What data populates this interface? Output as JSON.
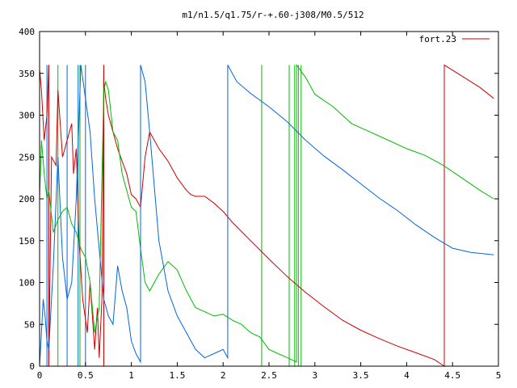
{
  "chart_data": {
    "type": "line",
    "title": "m1/n1.5/q1.75/r-+.60-j308/M0.5/512",
    "xlabel": "",
    "ylabel": "",
    "xlim": [
      0,
      5
    ],
    "ylim": [
      0,
      400
    ],
    "xticks": [
      0,
      0.5,
      1,
      1.5,
      2,
      2.5,
      3,
      3.5,
      4,
      4.5,
      5
    ],
    "xtick_labels": [
      "0",
      "0.5",
      "1",
      "1.5",
      "2",
      "2.5",
      "3",
      "3.5",
      "4",
      "4.5",
      "5"
    ],
    "yticks": [
      0,
      50,
      100,
      150,
      200,
      250,
      300,
      350,
      400
    ],
    "ytick_labels": [
      "0",
      "50",
      "100",
      "150",
      "200",
      "250",
      "300",
      "350",
      "400"
    ],
    "grid": false,
    "legend_position": "top-right",
    "legend": [
      {
        "label": "fort.23",
        "color": "#cc0000"
      }
    ],
    "series": [
      {
        "color": "#cc0000",
        "x": [
          0,
          0.02,
          0.05,
          0.08,
          0.1,
          0.1,
          0.13,
          0.18,
          0.2,
          0.25,
          0.3,
          0.35,
          0.37,
          0.4,
          0.43,
          0.47,
          0.52,
          0.55,
          0.6,
          0.63,
          0.65,
          0.68,
          0.7,
          0.7,
          0.72,
          0.75,
          0.8,
          0.85,
          0.9,
          0.95,
          1.0,
          1.05,
          1.1,
          1.15,
          1.2,
          1.25,
          1.3,
          1.4,
          1.5,
          1.6,
          1.65,
          1.7,
          1.8,
          1.9,
          2.0,
          2.1,
          2.3,
          2.5,
          2.7,
          2.9,
          3.1,
          3.3,
          3.5,
          3.7,
          3.9,
          4.1,
          4.3,
          4.41,
          4.41,
          4.6,
          4.8,
          4.95
        ],
        "y": [
          355,
          330,
          270,
          300,
          360,
          0,
          250,
          240,
          330,
          250,
          270,
          290,
          230,
          260,
          150,
          80,
          40,
          100,
          20,
          70,
          10,
          80,
          360,
          340,
          320,
          300,
          280,
          260,
          245,
          230,
          205,
          200,
          190,
          250,
          280,
          270,
          260,
          245,
          225,
          210,
          205,
          203,
          203,
          195,
          185,
          172,
          150,
          128,
          107,
          88,
          71,
          55,
          43,
          33,
          24,
          16,
          8,
          0,
          360,
          347,
          333,
          320
        ]
      },
      {
        "color": "#00bb00",
        "x": [
          0,
          0.02,
          0.05,
          0.08,
          0.1,
          0.15,
          0.2,
          0.25,
          0.3,
          0.35,
          0.4,
          0.45,
          0.5,
          0.55,
          0.6,
          0.65,
          0.7,
          0.72,
          0.75,
          0.8,
          0.85,
          0.9,
          0.95,
          1.0,
          1.05,
          1.1,
          1.15,
          1.2,
          1.3,
          1.4,
          1.45,
          1.5,
          1.6,
          1.7,
          1.8,
          1.9,
          2.0,
          2.1,
          2.2,
          2.3,
          2.4,
          2.5,
          2.6,
          2.7,
          2.8,
          2.8,
          2.9,
          3.0,
          3.2,
          3.4,
          3.6,
          3.8,
          4.0,
          4.2,
          4.4,
          4.6,
          4.8,
          4.95
        ],
        "y": [
          200,
          270,
          230,
          200,
          210,
          160,
          175,
          185,
          190,
          170,
          160,
          140,
          130,
          100,
          40,
          70,
          330,
          340,
          330,
          280,
          270,
          230,
          210,
          190,
          185,
          140,
          100,
          90,
          110,
          125,
          120,
          115,
          90,
          70,
          65,
          60,
          62,
          55,
          50,
          40,
          35,
          20,
          15,
          10,
          5,
          360,
          345,
          325,
          310,
          290,
          280,
          270,
          260,
          252,
          240,
          225,
          210,
          200
        ]
      },
      {
        "color": "#0066dd",
        "x": [
          0,
          0.02,
          0.04,
          0.06,
          0.08,
          0.1,
          0.15,
          0.2,
          0.25,
          0.3,
          0.35,
          0.4,
          0.45,
          0.5,
          0.55,
          0.6,
          0.65,
          0.7,
          0.75,
          0.8,
          0.85,
          0.9,
          0.95,
          1.0,
          1.05,
          1.1,
          1.1,
          1.15,
          1.2,
          1.3,
          1.4,
          1.5,
          1.6,
          1.7,
          1.8,
          1.9,
          2.0,
          2.05,
          2.05,
          2.15,
          2.3,
          2.5,
          2.7,
          2.9,
          3.1,
          3.3,
          3.5,
          3.7,
          3.9,
          4.1,
          4.3,
          4.5,
          4.7,
          4.95
        ],
        "y": [
          0,
          40,
          80,
          60,
          30,
          20,
          120,
          250,
          130,
          80,
          100,
          200,
          360,
          320,
          280,
          200,
          140,
          80,
          60,
          50,
          120,
          90,
          70,
          30,
          15,
          5,
          360,
          340,
          280,
          150,
          90,
          60,
          40,
          20,
          10,
          15,
          20,
          10,
          360,
          340,
          326,
          310,
          292,
          270,
          251,
          235,
          218,
          201,
          186,
          169,
          154,
          141,
          136,
          133
        ]
      }
    ],
    "spikes": [
      {
        "color": "#00bb00",
        "x": [
          0.2,
          0.44,
          0.7,
          2.42,
          2.72,
          2.78,
          2.82,
          2.85
        ],
        "y_low": 0,
        "y_high": 360
      },
      {
        "color": "#0066dd",
        "x": [
          0.08,
          0.3,
          0.42,
          0.5
        ],
        "y_low": 0,
        "y_high": 360
      },
      {
        "color": "#cc0000",
        "x": [
          0.1,
          0.7
        ],
        "y_low": 0,
        "y_high": 360
      }
    ]
  }
}
